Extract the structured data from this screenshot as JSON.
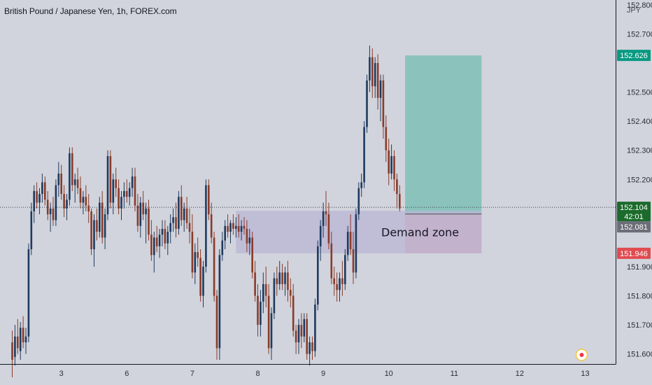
{
  "header": {
    "title": "British Pound / Japanese Yen, 1h, FOREX.com",
    "currency": "JPY"
  },
  "colors": {
    "background": "#d1d4dc",
    "up_candle": "#1e3a5f",
    "down_candle": "#8a3b2a",
    "target_zone": "#7fc0b6",
    "stop_zone": "#e0a0a6",
    "demand_zone": "#b9b6d6",
    "tag_target": "#089981",
    "tag_current": "#1b6b2c",
    "tag_entry": "#6b6e78",
    "tag_stop": "#e04b50",
    "alert_marker": "#f23645"
  },
  "chart_data": {
    "type": "candlestick",
    "title": "British Pound / Japanese Yen, 1h, FOREX.com",
    "ylim": [
      151.58,
      152.79
    ],
    "y_ticks": [
      151.6,
      151.7,
      151.8,
      151.9,
      152.0,
      152.1,
      152.2,
      152.3,
      152.4,
      152.5,
      152.6,
      152.7,
      152.8
    ],
    "y_tick_labels": [
      "151.600",
      "151.700",
      "151.800",
      "151.900",
      "",
      "",
      "152.200",
      "152.300",
      "152.400",
      "152.500",
      "",
      "152.700",
      "152.800"
    ],
    "x_ticks": [
      {
        "label": "3",
        "index": 18
      },
      {
        "label": "6",
        "index": 42
      },
      {
        "label": "7",
        "index": 66
      },
      {
        "label": "8",
        "index": 90
      },
      {
        "label": "9",
        "index": 114
      },
      {
        "label": "10",
        "index": 138
      },
      {
        "label": "11",
        "index": 162
      },
      {
        "label": "12",
        "index": 186
      },
      {
        "label": "13",
        "index": 210
      }
    ],
    "candles": [
      [
        151.64,
        151.68,
        151.52,
        151.58
      ],
      [
        151.59,
        151.7,
        151.56,
        151.66
      ],
      [
        151.66,
        151.72,
        151.6,
        151.62
      ],
      [
        151.61,
        151.71,
        151.58,
        151.69
      ],
      [
        151.69,
        151.73,
        151.62,
        151.64
      ],
      [
        151.64,
        151.69,
        151.6,
        151.66
      ],
      [
        151.66,
        151.98,
        151.64,
        151.96
      ],
      [
        151.96,
        152.12,
        151.94,
        152.09
      ],
      [
        152.09,
        152.18,
        152.05,
        152.16
      ],
      [
        152.16,
        152.19,
        152.1,
        152.12
      ],
      [
        152.12,
        152.17,
        152.08,
        152.15
      ],
      [
        152.15,
        152.22,
        152.12,
        152.19
      ],
      [
        152.19,
        152.21,
        152.11,
        152.13
      ],
      [
        152.13,
        152.16,
        152.06,
        152.08
      ],
      [
        152.08,
        152.12,
        152.02,
        152.1
      ],
      [
        152.1,
        152.14,
        152.04,
        152.06
      ],
      [
        152.06,
        152.2,
        152.04,
        152.18
      ],
      [
        152.18,
        152.26,
        152.14,
        152.22
      ],
      [
        152.22,
        152.25,
        152.13,
        152.15
      ],
      [
        152.15,
        152.18,
        152.07,
        152.1
      ],
      [
        152.1,
        152.15,
        152.06,
        152.13
      ],
      [
        152.13,
        152.31,
        152.11,
        152.29
      ],
      [
        152.29,
        152.31,
        152.16,
        152.18
      ],
      [
        152.18,
        152.22,
        152.12,
        152.2
      ],
      [
        152.2,
        152.24,
        152.15,
        152.17
      ],
      [
        152.17,
        152.21,
        152.1,
        152.12
      ],
      [
        152.12,
        152.16,
        152.08,
        152.14
      ],
      [
        152.14,
        152.18,
        152.09,
        152.11
      ],
      [
        152.11,
        152.15,
        152.05,
        152.09
      ],
      [
        152.09,
        152.1,
        151.94,
        151.96
      ],
      [
        151.96,
        152.08,
        151.9,
        152.06
      ],
      [
        152.06,
        152.1,
        151.99,
        152.02
      ],
      [
        152.02,
        152.14,
        152.0,
        152.12
      ],
      [
        152.12,
        152.16,
        151.98,
        152.0
      ],
      [
        152.0,
        152.1,
        151.96,
        152.08
      ],
      [
        152.08,
        152.3,
        152.06,
        152.28
      ],
      [
        152.28,
        152.3,
        152.1,
        152.12
      ],
      [
        152.12,
        152.22,
        152.08,
        152.2
      ],
      [
        152.2,
        152.24,
        152.14,
        152.17
      ],
      [
        152.17,
        152.2,
        152.08,
        152.1
      ],
      [
        152.1,
        152.16,
        152.06,
        152.14
      ],
      [
        152.14,
        152.19,
        152.1,
        152.16
      ],
      [
        152.16,
        152.2,
        152.12,
        152.14
      ],
      [
        152.14,
        152.19,
        152.11,
        152.17
      ],
      [
        152.17,
        152.24,
        152.14,
        152.21
      ],
      [
        152.21,
        152.24,
        152.09,
        152.11
      ],
      [
        152.11,
        152.15,
        152.02,
        152.04
      ],
      [
        152.04,
        152.14,
        152.0,
        152.12
      ],
      [
        152.12,
        152.16,
        152.06,
        152.08
      ],
      [
        152.08,
        152.12,
        151.98,
        152.1
      ],
      [
        152.1,
        152.13,
        151.99,
        152.01
      ],
      [
        152.01,
        152.06,
        151.92,
        151.94
      ],
      [
        151.94,
        152.02,
        151.88,
        152.0
      ],
      [
        152.0,
        152.04,
        151.95,
        151.97
      ],
      [
        151.97,
        152.03,
        151.93,
        152.01
      ],
      [
        152.01,
        152.06,
        151.97,
        152.03
      ],
      [
        152.03,
        152.06,
        151.96,
        151.98
      ],
      [
        151.98,
        152.04,
        151.94,
        152.02
      ],
      [
        152.02,
        152.08,
        151.98,
        152.05
      ],
      [
        152.05,
        152.1,
        152.02,
        152.07
      ],
      [
        152.07,
        152.12,
        152.0,
        152.03
      ],
      [
        152.03,
        152.16,
        152.01,
        152.14
      ],
      [
        152.14,
        152.18,
        152.04,
        152.06
      ],
      [
        152.06,
        152.12,
        152.02,
        152.1
      ],
      [
        152.1,
        152.14,
        152.03,
        152.05
      ],
      [
        152.05,
        152.1,
        151.98,
        152.02
      ],
      [
        152.02,
        152.08,
        151.86,
        151.88
      ],
      [
        151.88,
        151.98,
        151.84,
        151.95
      ],
      [
        151.95,
        152.0,
        151.9,
        151.93
      ],
      [
        151.93,
        151.96,
        151.78,
        151.8
      ],
      [
        151.8,
        151.92,
        151.76,
        151.9
      ],
      [
        151.9,
        152.2,
        151.88,
        152.18
      ],
      [
        152.18,
        152.2,
        152.06,
        152.08
      ],
      [
        152.08,
        152.12,
        151.98,
        152.0
      ],
      [
        152.0,
        152.02,
        151.78,
        151.8
      ],
      [
        151.8,
        151.82,
        151.58,
        151.62
      ],
      [
        151.62,
        151.96,
        151.58,
        151.94
      ],
      [
        151.94,
        152.02,
        151.92,
        151.99
      ],
      [
        151.99,
        152.06,
        151.96,
        152.04
      ],
      [
        152.04,
        152.08,
        152.0,
        152.02
      ],
      [
        152.02,
        152.06,
        151.98,
        152.05
      ],
      [
        152.05,
        152.08,
        152.01,
        152.03
      ],
      [
        152.03,
        152.07,
        152.0,
        152.04
      ],
      [
        152.04,
        152.08,
        152.0,
        152.02
      ],
      [
        152.02,
        152.06,
        151.99,
        152.04
      ],
      [
        152.04,
        152.07,
        152.01,
        152.03
      ],
      [
        152.03,
        152.06,
        151.95,
        151.98
      ],
      [
        151.98,
        152.03,
        151.94,
        152.0
      ],
      [
        152.0,
        152.02,
        151.86,
        151.88
      ],
      [
        151.88,
        151.92,
        151.78,
        151.8
      ],
      [
        151.8,
        151.84,
        151.66,
        151.7
      ],
      [
        151.7,
        151.82,
        151.66,
        151.78
      ],
      [
        151.78,
        151.88,
        151.74,
        151.84
      ],
      [
        151.84,
        151.9,
        151.76,
        151.8
      ],
      [
        151.8,
        151.84,
        151.6,
        151.62
      ],
      [
        151.62,
        151.76,
        151.58,
        151.74
      ],
      [
        151.74,
        151.88,
        151.72,
        151.86
      ],
      [
        151.86,
        151.9,
        151.8,
        151.84
      ],
      [
        151.84,
        151.92,
        151.82,
        151.88
      ],
      [
        151.88,
        151.91,
        151.82,
        151.84
      ],
      [
        151.84,
        151.9,
        151.8,
        151.88
      ],
      [
        151.88,
        151.92,
        151.78,
        151.82
      ],
      [
        151.82,
        151.86,
        151.76,
        151.8
      ],
      [
        151.8,
        151.84,
        151.66,
        151.68
      ],
      [
        151.68,
        151.7,
        151.6,
        151.64
      ],
      [
        151.64,
        151.72,
        151.6,
        151.7
      ],
      [
        151.7,
        151.74,
        151.62,
        151.66
      ],
      [
        151.66,
        151.74,
        151.64,
        151.72
      ],
      [
        151.72,
        151.74,
        151.58,
        151.6
      ],
      [
        151.6,
        151.66,
        151.56,
        151.64
      ],
      [
        151.64,
        151.66,
        151.58,
        151.61
      ],
      [
        151.61,
        151.79,
        151.59,
        151.77
      ],
      [
        151.77,
        151.99,
        151.75,
        151.97
      ],
      [
        151.97,
        152.06,
        151.92,
        152.04
      ],
      [
        152.04,
        152.12,
        152.0,
        152.09
      ],
      [
        152.09,
        152.16,
        152.04,
        152.08
      ],
      [
        152.08,
        152.12,
        151.96,
        151.98
      ],
      [
        151.98,
        152.02,
        151.84,
        151.86
      ],
      [
        151.86,
        151.9,
        151.8,
        151.84
      ],
      [
        151.84,
        151.88,
        151.78,
        151.82
      ],
      [
        151.82,
        151.88,
        151.78,
        151.86
      ],
      [
        151.86,
        151.92,
        151.8,
        151.84
      ],
      [
        151.84,
        151.96,
        151.82,
        151.94
      ],
      [
        151.94,
        152.04,
        151.92,
        152.02
      ],
      [
        152.02,
        152.08,
        151.94,
        151.96
      ],
      [
        151.96,
        152.02,
        151.84,
        151.88
      ],
      [
        151.88,
        152.1,
        151.86,
        152.08
      ],
      [
        152.08,
        152.19,
        152.06,
        152.17
      ],
      [
        152.17,
        152.22,
        152.14,
        152.19
      ],
      [
        152.19,
        152.4,
        152.17,
        152.38
      ],
      [
        152.38,
        152.56,
        152.36,
        152.54
      ],
      [
        152.54,
        152.66,
        152.5,
        152.62
      ],
      [
        152.62,
        152.65,
        152.48,
        152.52
      ],
      [
        152.52,
        152.62,
        152.48,
        152.6
      ],
      [
        152.6,
        152.63,
        152.44,
        152.48
      ],
      [
        152.48,
        152.56,
        152.4,
        152.54
      ],
      [
        152.54,
        152.56,
        152.34,
        152.38
      ],
      [
        152.38,
        152.42,
        152.26,
        152.3
      ],
      [
        152.3,
        152.34,
        152.18,
        152.22
      ],
      [
        152.22,
        152.32,
        152.2,
        152.28
      ],
      [
        152.28,
        152.3,
        152.16,
        152.2
      ],
      [
        152.2,
        152.22,
        152.1,
        152.15
      ],
      [
        152.15,
        152.18,
        152.09,
        152.1
      ]
    ],
    "levels": {
      "target": 152.626,
      "entry": 152.081,
      "current": 152.104,
      "stop": 151.946
    },
    "zones": [
      {
        "type": "target",
        "from_index": 144,
        "to_index": 172,
        "low": 152.081,
        "high": 152.626
      },
      {
        "type": "stop",
        "from_index": 144,
        "to_index": 172,
        "low": 151.946,
        "high": 152.081
      },
      {
        "type": "demand",
        "from_index": 82,
        "to_index": 172,
        "low": 151.946,
        "high": 152.092,
        "label": "Demand zone"
      }
    ],
    "price_tags": [
      {
        "key": "target",
        "label": "152.626"
      },
      {
        "key": "current",
        "label": "152.104",
        "sub": "42:01"
      },
      {
        "key": "entry",
        "label": "152.081"
      },
      {
        "key": "stop",
        "label": "151.946"
      }
    ]
  }
}
